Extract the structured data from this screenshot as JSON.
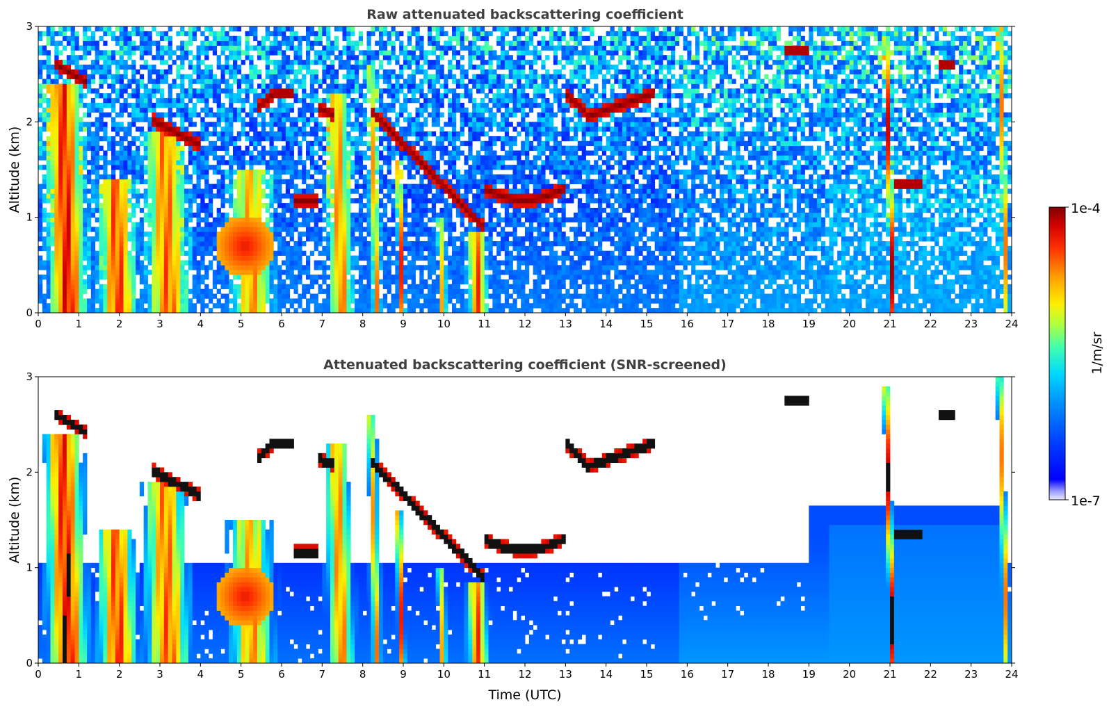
{
  "chart_data": [
    {
      "type": "heatmap",
      "title": "Raw attenuated backscattering coefficient",
      "xlabel": "",
      "ylabel": "Altitude (km)",
      "xlim": [
        0,
        24
      ],
      "ylim": [
        0,
        3
      ],
      "x_ticks": [
        "0",
        "1",
        "2",
        "3",
        "4",
        "5",
        "6",
        "7",
        "8",
        "9",
        "10",
        "11",
        "12",
        "13",
        "14",
        "15",
        "16",
        "17",
        "18",
        "19",
        "20",
        "21",
        "22",
        "23",
        "24"
      ],
      "y_ticks": [
        "0",
        "1",
        "2",
        "3"
      ],
      "screened": false
    },
    {
      "type": "heatmap",
      "title": "Attenuated backscattering coefficient (SNR-screened)",
      "xlabel": "Time (UTC)",
      "ylabel": "Altitude (km)",
      "xlim": [
        0,
        24
      ],
      "ylim": [
        0,
        3
      ],
      "x_ticks": [
        "0",
        "1",
        "2",
        "3",
        "4",
        "5",
        "6",
        "7",
        "8",
        "9",
        "10",
        "11",
        "12",
        "13",
        "14",
        "15",
        "16",
        "17",
        "18",
        "19",
        "20",
        "21",
        "22",
        "23",
        "24"
      ],
      "y_ticks": [
        "0",
        "1",
        "2",
        "3"
      ],
      "screened": true
    }
  ],
  "colorbar": {
    "label": "1/m/sr",
    "min_label": "1e-7",
    "max_label": "1e-4",
    "colormap": "jet"
  }
}
